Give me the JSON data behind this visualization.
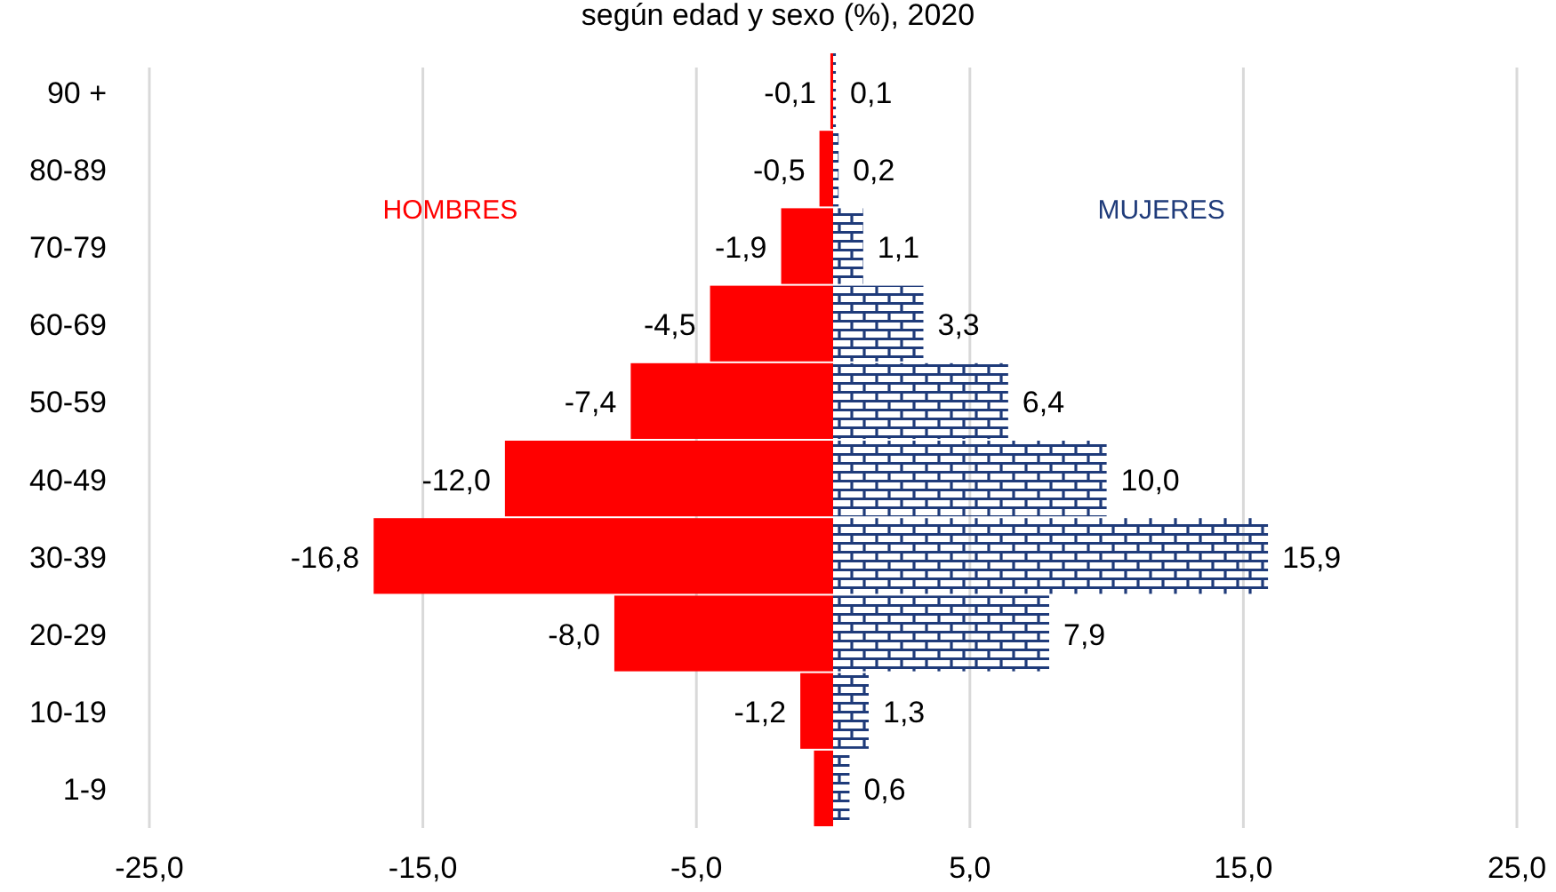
{
  "chart_data": {
    "type": "bar",
    "orientation": "horizontal",
    "stacked": true,
    "title": "según edad y sexo (%), 2020",
    "categories": [
      "90 +",
      "80-89",
      "70-79",
      "60-69",
      "50-59",
      "40-49",
      "30-39",
      "20-29",
      "10-19",
      "1-9"
    ],
    "series": [
      {
        "name": "HOMBRES",
        "color": "#ff0000",
        "values": [
          -0.1,
          -0.5,
          -1.9,
          -4.5,
          -7.4,
          -12.0,
          -16.8,
          -8.0,
          -1.2,
          -0.7
        ],
        "value_labels": [
          "-0,1",
          "-0,5",
          "-1,9",
          "-4,5",
          "-7,4",
          "-12,0",
          "-16,8",
          "-8,0",
          "-1,2",
          null
        ]
      },
      {
        "name": "MUJERES",
        "color": "#1f3b7a",
        "values": [
          0.1,
          0.2,
          1.1,
          3.3,
          6.4,
          10.0,
          15.9,
          7.9,
          1.3,
          0.6
        ],
        "value_labels": [
          "0,1",
          "0,2",
          "1,1",
          "3,3",
          "6,4",
          "10,0",
          "15,9",
          "7,9",
          "1,3",
          "0,6"
        ]
      }
    ],
    "xlim": [
      -25,
      25
    ],
    "xticks": [
      {
        "value": -25,
        "label": "-25,0"
      },
      {
        "value": -15,
        "label": "-15,0"
      },
      {
        "value": -5,
        "label": "-5,0"
      },
      {
        "value": 5,
        "label": "5,0"
      },
      {
        "value": 15,
        "label": "15,0"
      },
      {
        "value": 25,
        "label": "25,0"
      }
    ],
    "grid": "x"
  }
}
